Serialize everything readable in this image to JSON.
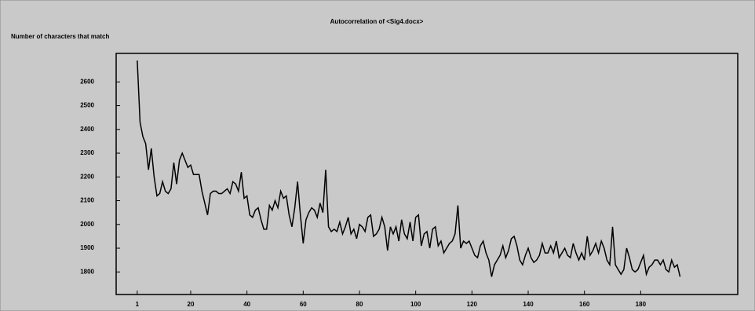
{
  "chart_data": {
    "type": "line",
    "title": "Autocorrelation of <Sig4.docx>",
    "y_label": "Number of characters that match",
    "x": [
      1,
      2,
      3,
      4,
      5,
      6,
      7,
      8,
      9,
      10,
      11,
      12,
      13,
      14,
      15,
      16,
      17,
      18,
      19,
      20,
      21,
      22,
      23,
      24,
      25,
      26,
      27,
      28,
      29,
      30,
      31,
      32,
      33,
      34,
      35,
      36,
      37,
      38,
      39,
      40,
      41,
      42,
      43,
      44,
      45,
      46,
      47,
      48,
      49,
      50,
      51,
      52,
      53,
      54,
      55,
      56,
      57,
      58,
      59,
      60,
      61,
      62,
      63,
      64,
      65,
      66,
      67,
      68,
      69,
      70,
      71,
      72,
      73,
      74,
      75,
      76,
      77,
      78,
      79,
      80,
      81,
      82,
      83,
      84,
      85,
      86,
      87,
      88,
      89,
      90,
      91,
      92,
      93,
      94,
      95,
      96,
      97,
      98,
      99,
      100,
      101,
      102,
      103,
      104,
      105,
      106,
      107,
      108,
      109,
      110,
      111,
      112,
      113,
      114,
      115,
      116,
      117,
      118,
      119,
      120,
      121,
      122,
      123,
      124,
      125,
      126,
      127,
      128,
      129,
      130,
      131,
      132,
      133,
      134,
      135,
      136,
      137,
      138,
      139,
      140,
      141,
      142,
      143,
      144,
      145,
      146,
      147,
      148,
      149,
      150,
      151,
      152,
      153,
      154,
      155,
      156,
      157,
      158,
      159,
      160,
      161,
      162,
      163,
      164,
      165,
      166,
      167,
      168,
      169,
      170,
      171,
      172,
      173,
      174,
      175,
      176,
      177,
      178,
      179,
      180,
      181,
      182,
      183,
      184,
      185,
      186,
      187,
      188,
      189,
      190,
      191,
      192,
      193,
      194
    ],
    "series": [
      {
        "name": "autocorrelation",
        "color": "#000000",
        "values": [
          2690,
          2430,
          2370,
          2340,
          2230,
          2320,
          2200,
          2120,
          2130,
          2180,
          2140,
          2130,
          2150,
          2260,
          2170,
          2270,
          2300,
          2270,
          2240,
          2250,
          2210,
          2210,
          2210,
          2140,
          2090,
          2040,
          2130,
          2140,
          2140,
          2130,
          2130,
          2140,
          2150,
          2130,
          2180,
          2170,
          2140,
          2220,
          2110,
          2120,
          2040,
          2030,
          2060,
          2070,
          2020,
          1980,
          1980,
          2080,
          2060,
          2100,
          2070,
          2140,
          2110,
          2120,
          2040,
          1990,
          2070,
          2180,
          2040,
          1920,
          2020,
          2050,
          2070,
          2060,
          2030,
          2090,
          2050,
          2230,
          1990,
          1970,
          1980,
          1970,
          2010,
          1960,
          1990,
          2030,
          1960,
          1980,
          1940,
          2000,
          1990,
          1970,
          2030,
          2040,
          1950,
          1960,
          1980,
          2030,
          1990,
          1890,
          1990,
          1960,
          1990,
          1930,
          2020,
          1960,
          1940,
          2010,
          1930,
          2030,
          2040,
          1910,
          1960,
          1970,
          1900,
          1980,
          1990,
          1910,
          1930,
          1880,
          1900,
          1920,
          1930,
          1960,
          2080,
          1900,
          1930,
          1920,
          1930,
          1900,
          1870,
          1860,
          1910,
          1930,
          1880,
          1850,
          1780,
          1830,
          1850,
          1870,
          1910,
          1860,
          1890,
          1940,
          1950,
          1910,
          1850,
          1830,
          1870,
          1900,
          1860,
          1840,
          1850,
          1870,
          1920,
          1880,
          1880,
          1910,
          1880,
          1930,
          1860,
          1880,
          1900,
          1870,
          1860,
          1920,
          1880,
          1850,
          1880,
          1850,
          1950,
          1870,
          1890,
          1920,
          1880,
          1930,
          1900,
          1850,
          1830,
          1990,
          1830,
          1810,
          1790,
          1810,
          1900,
          1860,
          1810,
          1800,
          1810,
          1840,
          1870,
          1790,
          1820,
          1830,
          1850,
          1850,
          1830,
          1850,
          1810,
          1800,
          1850,
          1820,
          1830,
          1780
        ]
      }
    ],
    "xlim": [
      -6.5,
      214.5
    ],
    "ylim": [
      1705,
      2720
    ],
    "xticks": [
      1,
      20,
      40,
      60,
      80,
      100,
      120,
      140,
      160,
      180
    ],
    "yticks": [
      1800,
      1900,
      2000,
      2100,
      2200,
      2300,
      2400,
      2500,
      2600
    ]
  }
}
